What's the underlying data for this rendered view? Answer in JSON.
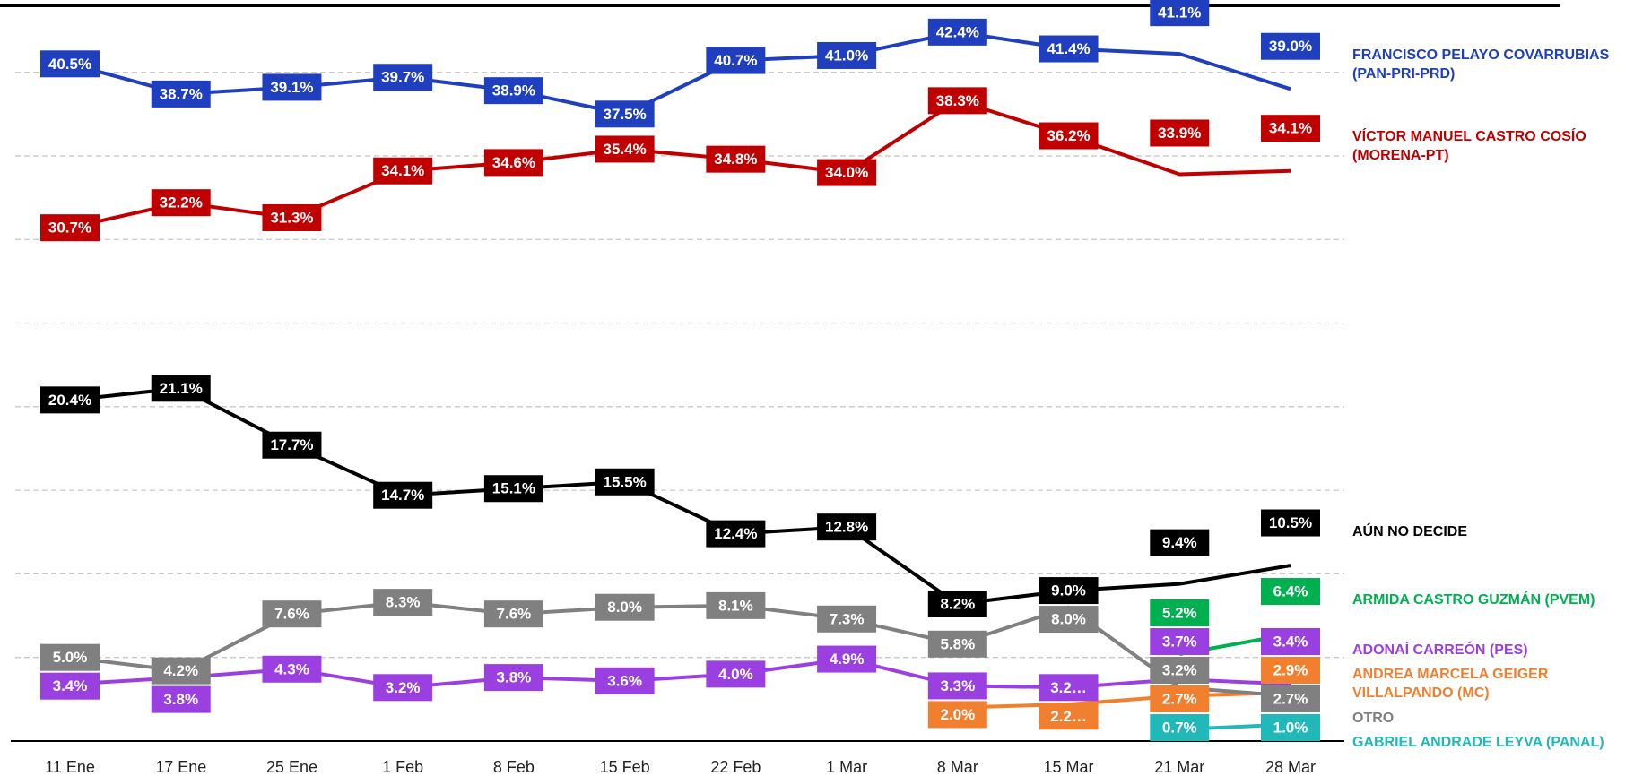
{
  "chart_data": {
    "type": "line",
    "categories": [
      "11 Ene",
      "17 Ene",
      "25 Ene",
      "1 Feb",
      "8 Feb",
      "15 Feb",
      "22 Feb",
      "1 Mar",
      "8 Mar",
      "15 Mar",
      "21 Mar",
      "28 Mar"
    ],
    "ylim": [
      0,
      44
    ],
    "yticks": [
      0,
      5,
      10,
      15,
      20,
      25,
      30,
      35,
      40
    ],
    "grid": true,
    "series": [
      {
        "name": "FRANCISCO PELAYO COVARRUBIAS (PAN-PRI-PRD)",
        "color": "#1f3fbf",
        "values": [
          40.5,
          38.7,
          39.1,
          39.7,
          38.9,
          37.5,
          40.7,
          41.0,
          42.4,
          41.4,
          41.1,
          39.0
        ],
        "value_labels": [
          "40.5%",
          "38.7%",
          "39.1%",
          "39.7%",
          "38.9%",
          "37.5%",
          "40.7%",
          "41.0%",
          "42.4%",
          "41.4%",
          "41.1%",
          "39.0%"
        ]
      },
      {
        "name": "VÍCTOR MANUEL CASTRO COSÍO (MORENA-PT)",
        "color": "#c00000",
        "values": [
          30.7,
          32.2,
          31.3,
          34.1,
          34.6,
          35.4,
          34.8,
          34.0,
          38.3,
          36.2,
          33.9,
          34.1
        ],
        "value_labels": [
          "30.7%",
          "32.2%",
          "31.3%",
          "34.1%",
          "34.6%",
          "35.4%",
          "34.8%",
          "34.0%",
          "38.3%",
          "36.2%",
          "33.9%",
          "34.1%"
        ]
      },
      {
        "name": "AÚN NO DECIDE",
        "color": "#000000",
        "values": [
          20.4,
          21.1,
          17.7,
          14.7,
          15.1,
          15.5,
          12.4,
          12.8,
          8.2,
          9.0,
          9.4,
          10.5
        ],
        "value_labels": [
          "20.4%",
          "21.1%",
          "17.7%",
          "14.7%",
          "15.1%",
          "15.5%",
          "12.4%",
          "12.8%",
          "8.2%",
          "9.0%",
          "9.4%",
          "10.5%"
        ]
      },
      {
        "name": "ARMIDA CASTRO GUZMÁN (PVEM)",
        "color": "#00b050",
        "values": [
          null,
          null,
          null,
          null,
          null,
          null,
          null,
          null,
          null,
          null,
          5.2,
          6.4
        ],
        "value_labels": [
          null,
          null,
          null,
          null,
          null,
          null,
          null,
          null,
          null,
          null,
          "5.2%",
          "6.4%"
        ]
      },
      {
        "name": "ADONAÍ CARREÓN (PES)",
        "color": "#9b40e0",
        "values": [
          3.4,
          3.8,
          4.3,
          3.2,
          3.8,
          3.6,
          4.0,
          4.9,
          3.3,
          3.2,
          3.7,
          3.4
        ],
        "value_labels": [
          "3.4%",
          "3.8%",
          "4.3%",
          "3.2%",
          "3.8%",
          "3.6%",
          "4.0%",
          "4.9%",
          "3.3%",
          "3.2…",
          "3.7%",
          "3.4%"
        ]
      },
      {
        "name": "ANDREA MARCELA GEIGER VILLALPANDO (MC)",
        "color": "#f08030",
        "values": [
          null,
          null,
          null,
          null,
          null,
          null,
          null,
          null,
          2.0,
          2.2,
          2.7,
          2.9
        ],
        "value_labels": [
          null,
          null,
          null,
          null,
          null,
          null,
          null,
          null,
          "2.0%",
          "2.2…",
          "2.7%",
          "2.9%"
        ]
      },
      {
        "name": "OTRO",
        "color": "#808080",
        "values": [
          5.0,
          4.2,
          7.6,
          8.3,
          7.6,
          8.0,
          8.1,
          7.3,
          5.8,
          8.0,
          3.2,
          2.7
        ],
        "value_labels": [
          "5.0%",
          "4.2%",
          "7.6%",
          "8.3%",
          "7.6%",
          "8.0%",
          "8.1%",
          "7.3%",
          "5.8%",
          "8.0%",
          "3.2%",
          "2.7%"
        ]
      },
      {
        "name": "GABRIEL ANDRADE LEYVA (PANAL)",
        "color": "#20b8b8",
        "values": [
          null,
          null,
          null,
          null,
          null,
          null,
          null,
          null,
          null,
          null,
          0.7,
          1.0
        ],
        "value_labels": [
          null,
          null,
          null,
          null,
          null,
          null,
          null,
          null,
          null,
          null,
          "0.7%",
          "1.0%"
        ]
      }
    ]
  }
}
